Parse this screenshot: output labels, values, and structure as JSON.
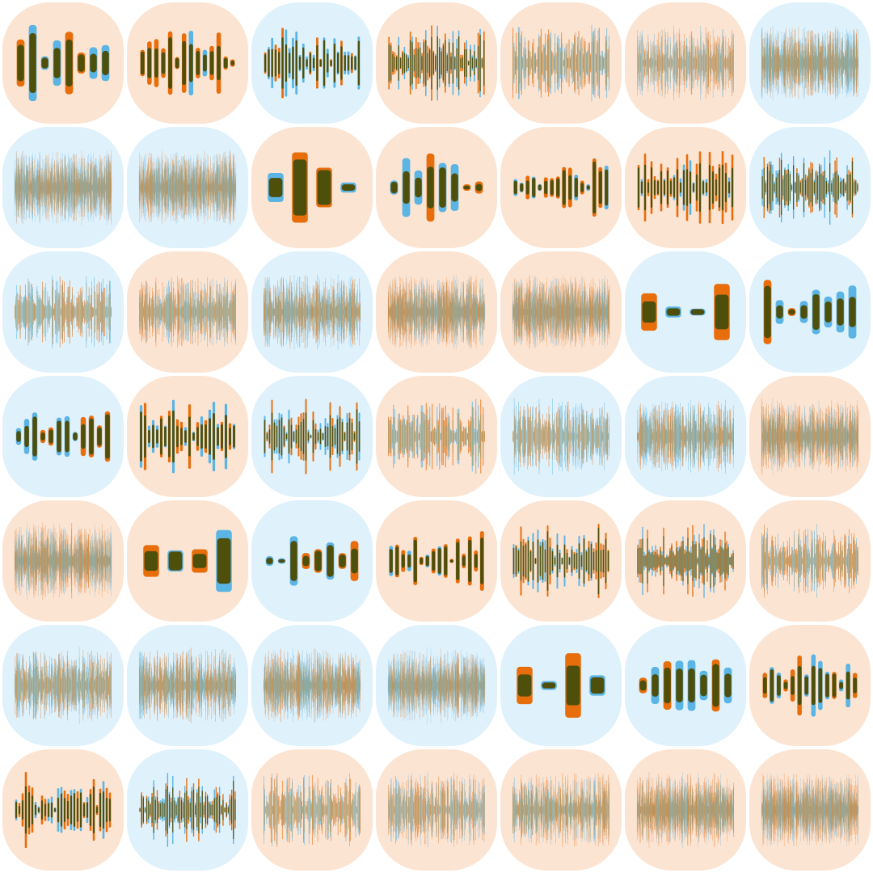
{
  "palette": {
    "warm_tile": "#FCE4D2",
    "cool_tile": "#DFF1FB",
    "orange": "#E86E0C",
    "blue": "#5AB4E4",
    "dark": "#4F4F0C",
    "olive": "#8E8E5C"
  },
  "grid": {
    "rows": 7,
    "cols": 7,
    "tiles": [
      {
        "bg": "warm",
        "bars": 8
      },
      {
        "bg": "warm",
        "bars": 14
      },
      {
        "bg": "cool",
        "bars": 28
      },
      {
        "bg": "warm",
        "bars": 50
      },
      {
        "bg": "warm",
        "bars": 90
      },
      {
        "bg": "warm",
        "bars": 160
      },
      {
        "bg": "cool",
        "bars": 320
      },
      {
        "bg": "cool",
        "bars": 420
      },
      {
        "bg": "cool",
        "bars": 420
      },
      {
        "bg": "warm",
        "bars": 4
      },
      {
        "bg": "warm",
        "bars": 8
      },
      {
        "bg": "warm",
        "bars": 16
      },
      {
        "bg": "warm",
        "bars": 30
      },
      {
        "bg": "cool",
        "bars": 56
      },
      {
        "bg": "cool",
        "bars": 110
      },
      {
        "bg": "warm",
        "bars": 180
      },
      {
        "bg": "cool",
        "bars": 260
      },
      {
        "bg": "warm",
        "bars": 380
      },
      {
        "bg": "warm",
        "bars": 420
      },
      {
        "bg": "cool",
        "bars": 4
      },
      {
        "bg": "cool",
        "bars": 8
      },
      {
        "bg": "cool",
        "bars": 12
      },
      {
        "bg": "warm",
        "bars": 24
      },
      {
        "bg": "cool",
        "bars": 40
      },
      {
        "bg": "warm",
        "bars": 80
      },
      {
        "bg": "cool",
        "bars": 140
      },
      {
        "bg": "cool",
        "bars": 220
      },
      {
        "bg": "warm",
        "bars": 320
      },
      {
        "bg": "warm",
        "bars": 380
      },
      {
        "bg": "warm",
        "bars": 4
      },
      {
        "bg": "cool",
        "bars": 8
      },
      {
        "bg": "warm",
        "bars": 16
      },
      {
        "bg": "warm",
        "bars": 40
      },
      {
        "bg": "warm",
        "bars": 60
      },
      {
        "bg": "warm",
        "bars": 120
      },
      {
        "bg": "cool",
        "bars": 200
      },
      {
        "bg": "cool",
        "bars": 260
      },
      {
        "bg": "cool",
        "bars": 340
      },
      {
        "bg": "cool",
        "bars": 420
      },
      {
        "bg": "cool",
        "bars": 4
      },
      {
        "bg": "cool",
        "bars": 8
      },
      {
        "bg": "warm",
        "bars": 14
      },
      {
        "bg": "warm",
        "bars": 30
      },
      {
        "bg": "cool",
        "bars": 56
      },
      {
        "bg": "warm",
        "bars": 110
      },
      {
        "bg": "warm",
        "bars": 160
      },
      {
        "bg": "warm",
        "bars": 220
      },
      {
        "bg": "warm",
        "bars": 340
      },
      {
        "bg": "warm",
        "bars": 420
      }
    ]
  }
}
